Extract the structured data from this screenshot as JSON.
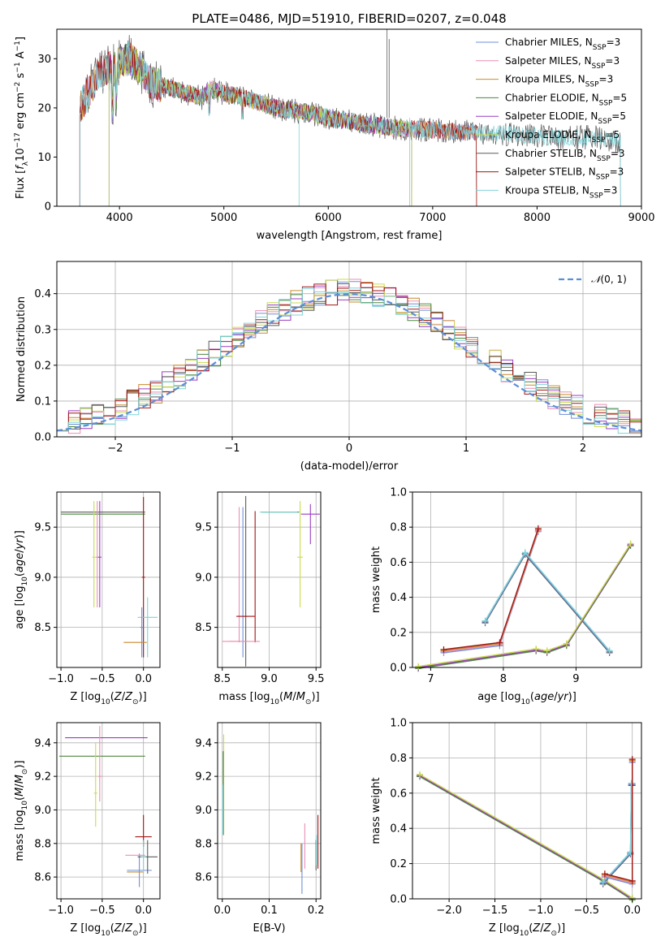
{
  "figure": {
    "title": "PLATE=0486, MJD=51910, FIBERID=0207, z=0.048"
  },
  "colors": {
    "Chabrier MILES": "#6f8fd8",
    "Salpeter MILES": "#e98fb6",
    "Kroupa MILES": "#c98a2c",
    "Chabrier ELODIE": "#4c8a3e",
    "Salpeter ELODIE": "#9b3cc0",
    "Kroupa ELODIE": "#c9dd4a",
    "Chabrier STELIB": "#5a5a5a",
    "Salpeter STELIB": "#a11616",
    "Kroupa STELIB": "#7fd3d8"
  },
  "chart_data": [
    {
      "id": "spectrum",
      "type": "line",
      "title": "PLATE=0486, MJD=51910, FIBERID=0207, z=0.048",
      "xlabel": "wavelength [Angstrom, rest frame]",
      "ylabel_html": "Flux [fλ10⁻¹⁷ erg cm⁻² s⁻¹ A⁻¹]",
      "xlim": [
        3400,
        9000
      ],
      "ylim": [
        0,
        36
      ],
      "xticks": [
        4000,
        5000,
        6000,
        7000,
        8000,
        9000
      ],
      "yticks": [
        0,
        10,
        20,
        30
      ],
      "grid": false,
      "legend_position": "upper-right",
      "series": [
        {
          "name": "Chabrier MILES",
          "nssp": "3",
          "x_range": [
            3620,
            7420
          ]
        },
        {
          "name": "Salpeter MILES",
          "nssp": "3",
          "x_range": [
            3620,
            7420
          ]
        },
        {
          "name": "Kroupa MILES",
          "nssp": "3",
          "x_range": [
            3620,
            7420
          ]
        },
        {
          "name": "Chabrier ELODIE",
          "nssp": "5",
          "x_range": [
            3900,
            6800
          ]
        },
        {
          "name": "Salpeter ELODIE",
          "nssp": "5",
          "x_range": [
            3900,
            6800
          ]
        },
        {
          "name": "Kroupa ELODIE",
          "nssp": "5",
          "x_range": [
            3900,
            6800
          ]
        },
        {
          "name": "Chabrier STELIB",
          "nssp": "3",
          "x_range": [
            3620,
            8800
          ]
        },
        {
          "name": "Salpeter STELIB",
          "nssp": "3",
          "x_range": [
            3620,
            7420
          ]
        },
        {
          "name": "Kroupa STELIB",
          "nssp": "3",
          "x_range": [
            3620,
            8800
          ]
        }
      ],
      "continuum": {
        "x": [
          3620,
          3700,
          3800,
          3900,
          4000,
          4100,
          4200,
          4300,
          4500,
          4800,
          4860,
          5000,
          5200,
          5500,
          5800,
          6000,
          6300,
          6600,
          7000,
          7400,
          7800,
          8200,
          8600,
          8800
        ],
        "y": [
          20,
          23,
          27,
          28,
          29,
          30,
          28,
          25,
          24,
          22,
          24,
          23,
          22,
          20,
          19,
          18,
          17,
          16,
          15.5,
          15,
          14.5,
          14,
          14,
          13
        ]
      }
    },
    {
      "id": "residuals",
      "type": "histogram",
      "xlabel": "(data-model)/error",
      "ylabel": "Normed distribution",
      "xlim": [
        -2.5,
        2.5
      ],
      "ylim": [
        0,
        0.49
      ],
      "xticks": [
        -2,
        -1,
        0,
        1,
        2
      ],
      "yticks": [
        0.0,
        0.1,
        0.2,
        0.3,
        0.4
      ],
      "grid": true,
      "legend_position": "upper-right",
      "reference_curve": {
        "name": "𝒩(0, 1)",
        "mean": 0,
        "sigma": 1
      },
      "bin_width": 0.1
    },
    {
      "id": "age-vs-Z",
      "type": "errorbar",
      "xlabel": "Z [log10(Z/Z⊙)]",
      "ylabel": "age  [log10(age/yr)]",
      "xlim": [
        -1.05,
        0.2
      ],
      "ylim": [
        8.1,
        9.85
      ],
      "xticks": [
        -1.0,
        -0.5,
        0.0
      ],
      "yticks": [
        8.5,
        9.0,
        9.5
      ],
      "grid": true
    },
    {
      "id": "age-vs-mass",
      "type": "errorbar",
      "xlabel": "mass [log10(M/M⊙)]",
      "ylabel": "",
      "xlim": [
        8.45,
        9.55
      ],
      "ylim": [
        8.1,
        9.85
      ],
      "xticks": [
        8.5,
        9.0,
        9.5
      ],
      "yticks": [
        8.5,
        9.0,
        9.5
      ],
      "grid": true
    },
    {
      "id": "massweight-vs-age",
      "type": "line",
      "xlabel": "age  [log10(age/yr)]",
      "ylabel": "mass weight",
      "xlim": [
        6.75,
        9.9
      ],
      "ylim": [
        0,
        1.0
      ],
      "xticks": [
        7,
        8,
        9
      ],
      "yticks": [
        0.0,
        0.2,
        0.4,
        0.6,
        0.8,
        1.0
      ],
      "grid": true,
      "series": [
        {
          "group": "MILES",
          "x": [
            7.18,
            7.95,
            8.48
          ],
          "y": [
            0.09,
            0.13,
            0.78
          ]
        },
        {
          "group": "STELIB",
          "x": [
            7.75,
            8.3,
            9.46
          ],
          "y": [
            0.26,
            0.65,
            0.09
          ]
        },
        {
          "group": "ELODIE",
          "x": [
            6.83,
            8.45,
            8.6,
            8.87,
            9.75
          ],
          "y": [
            0.0,
            0.1,
            0.09,
            0.13,
            0.7
          ]
        }
      ]
    },
    {
      "id": "mass-vs-Z",
      "type": "errorbar",
      "xlabel": "Z [log10(Z/Z⊙)]",
      "ylabel": "mass [log10(M/M⊙)]",
      "xlim": [
        -1.05,
        0.2
      ],
      "ylim": [
        8.47,
        9.52
      ],
      "xticks": [
        -1.0,
        -0.5,
        0.0
      ],
      "yticks": [
        8.6,
        8.8,
        9.0,
        9.2,
        9.4
      ],
      "grid": true
    },
    {
      "id": "mass-vs-EBV",
      "type": "errorbar",
      "xlabel": "E(B-V)",
      "ylabel": "",
      "xlim": [
        -0.01,
        0.21
      ],
      "ylim": [
        8.47,
        9.52
      ],
      "xticks": [
        0.0,
        0.1,
        0.2
      ],
      "yticks": [
        8.6,
        8.8,
        9.0,
        9.2,
        9.4
      ],
      "grid": true
    },
    {
      "id": "massweight-vs-Z",
      "type": "line",
      "xlabel": "Z [log10(Z/Z⊙)]",
      "ylabel": "mass weight",
      "xlim": [
        -2.4,
        0.1
      ],
      "ylim": [
        0,
        1.0
      ],
      "xticks": [
        -2.0,
        -1.5,
        -1.0,
        -0.5,
        0.0
      ],
      "yticks": [
        0.0,
        0.2,
        0.4,
        0.6,
        0.8,
        1.0
      ],
      "grid": true,
      "series": [
        {
          "group": "ELODIE",
          "x": [
            -2.32,
            -0.3,
            0.0
          ],
          "y": [
            0.7,
            0.1,
            0.0
          ]
        },
        {
          "group": "STELIB",
          "x": [
            -0.32,
            -0.02,
            -0.01,
            0.0
          ],
          "y": [
            0.09,
            0.26,
            0.65,
            0.65
          ]
        },
        {
          "group": "MILES",
          "x": [
            -0.3,
            0.0,
            0.0
          ],
          "y": [
            0.13,
            0.09,
            0.78
          ]
        }
      ]
    }
  ]
}
